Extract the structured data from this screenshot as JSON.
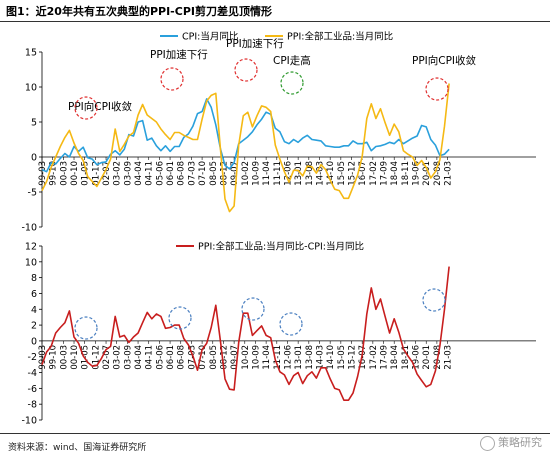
{
  "figure_title": "图1：近20年共有五次典型的PPI-CPI剪刀差见顶情形",
  "source": "资料来源：wind、国海证券研究所",
  "watermark": "策略研究",
  "colors": {
    "cpi": "#2aa0dc",
    "ppi": "#f5b914",
    "diff": "#c81e1e",
    "cpi_peak_circle": "#2f9a2f",
    "ppi_peak_circle": "#e03030",
    "diff_peak_circle": "#4a7fc0"
  },
  "annotations": [
    "PPI向CPI收敛",
    "PPI加速下行",
    "PPI加速下行",
    "CPI走高",
    "PPI向CPI收敛"
  ],
  "chart_data": [
    {
      "type": "line",
      "title": "",
      "xlabel": "",
      "ylabel": "",
      "ylim": [
        -10,
        15
      ],
      "yticks": [
        -10,
        -5,
        0,
        5,
        10,
        15
      ],
      "x_ticks": [
        "99-03",
        "99-10",
        "00-05",
        "00-12",
        "01-07",
        "02-02",
        "02-09",
        "03-04",
        "03-11",
        "04-06",
        "05-01",
        "05-08",
        "06-03",
        "06-10",
        "07-05",
        "07-12",
        "08-07",
        "09-02",
        "09-09",
        "10-04",
        "10-11",
        "11-06",
        "12-01",
        "12-08",
        "13-03",
        "13-10",
        "14-05",
        "14-12",
        "15-07",
        "16-02",
        "16-09",
        "17-04",
        "17-11",
        "18-06",
        "19-01",
        "19-08",
        "20-03",
        "20-10",
        "21-05"
      ],
      "x_display_labels": [
        "99-03",
        "99-10",
        "00-03",
        "00-10",
        "01-05",
        "01-12",
        "02-07",
        "03-02",
        "03-09",
        "04-04",
        "04-11",
        "05-06",
        "06-01",
        "06-08",
        "07-03",
        "07-10",
        "08-05",
        "08-12",
        "09-07",
        "10-02",
        "10-09",
        "11-04",
        "11-11",
        "12-06",
        "13-01",
        "13-08",
        "14-03",
        "14-10",
        "15-05",
        "15-12",
        "16-07",
        "17-02",
        "17-09",
        "18-04",
        "18-11",
        "19-06",
        "20-01",
        "20-08",
        "21-03"
      ],
      "series": [
        {
          "name": "CPI:当月同比",
          "x": [
            "1999-03",
            "1999-06",
            "1999-09",
            "1999-12",
            "2000-03",
            "2000-06",
            "2000-09",
            "2000-12",
            "2001-03",
            "2001-06",
            "2001-09",
            "2001-12",
            "2002-03",
            "2002-06",
            "2002-09",
            "2002-12",
            "2003-03",
            "2003-06",
            "2003-09",
            "2003-12",
            "2004-03",
            "2004-06",
            "2004-09",
            "2004-12",
            "2005-03",
            "2005-06",
            "2005-09",
            "2005-12",
            "2006-03",
            "2006-06",
            "2006-09",
            "2006-12",
            "2007-03",
            "2007-06",
            "2007-09",
            "2007-12",
            "2008-03",
            "2008-06",
            "2008-09",
            "2008-12",
            "2009-03",
            "2009-06",
            "2009-09",
            "2009-12",
            "2010-03",
            "2010-06",
            "2010-09",
            "2010-12",
            "2011-03",
            "2011-06",
            "2011-09",
            "2011-12",
            "2012-03",
            "2012-06",
            "2012-09",
            "2012-12",
            "2013-03",
            "2013-06",
            "2013-09",
            "2013-12",
            "2014-03",
            "2014-06",
            "2014-09",
            "2014-12",
            "2015-03",
            "2015-06",
            "2015-09",
            "2015-12",
            "2016-03",
            "2016-06",
            "2016-09",
            "2016-12",
            "2017-03",
            "2017-06",
            "2017-09",
            "2017-12",
            "2018-03",
            "2018-06",
            "2018-09",
            "2018-12",
            "2019-03",
            "2019-06",
            "2019-09",
            "2019-12",
            "2020-03",
            "2020-06",
            "2020-09",
            "2020-12",
            "2021-03",
            "2021-06"
          ],
          "values": [
            -1.8,
            -2.1,
            -0.8,
            -1.0,
            -0.2,
            0.5,
            0.0,
            1.5,
            0.8,
            1.4,
            -0.1,
            -0.3,
            -1.1,
            -0.8,
            -0.7,
            0.4,
            0.9,
            0.3,
            1.1,
            3.2,
            3.0,
            5.0,
            5.2,
            2.4,
            2.7,
            1.6,
            0.9,
            1.6,
            0.8,
            1.5,
            1.5,
            2.8,
            3.3,
            4.4,
            6.2,
            6.5,
            8.3,
            7.1,
            4.6,
            1.2,
            -1.2,
            -1.7,
            -0.8,
            1.9,
            2.4,
            2.9,
            3.6,
            4.6,
            5.4,
            6.4,
            6.1,
            4.1,
            3.6,
            2.2,
            1.9,
            2.5,
            2.1,
            2.7,
            3.1,
            2.5,
            2.4,
            2.3,
            1.6,
            1.5,
            1.4,
            1.4,
            1.6,
            1.6,
            2.3,
            1.9,
            1.9,
            2.1,
            0.9,
            1.5,
            1.6,
            1.8,
            2.1,
            1.9,
            2.5,
            1.9,
            2.3,
            2.7,
            3.0,
            4.5,
            4.3,
            2.5,
            1.7,
            0.2,
            0.4,
            1.1
          ]
        },
        {
          "name": "PPI:全部工业品:当月同比",
          "x": [
            "1999-03",
            "1999-06",
            "1999-09",
            "1999-12",
            "2000-03",
            "2000-06",
            "2000-09",
            "2000-12",
            "2001-03",
            "2001-06",
            "2001-09",
            "2001-12",
            "2002-03",
            "2002-06",
            "2002-09",
            "2002-12",
            "2003-03",
            "2003-06",
            "2003-09",
            "2003-12",
            "2004-03",
            "2004-06",
            "2004-09",
            "2004-12",
            "2005-03",
            "2005-06",
            "2005-09",
            "2005-12",
            "2006-03",
            "2006-06",
            "2006-09",
            "2006-12",
            "2007-03",
            "2007-06",
            "2007-09",
            "2007-12",
            "2008-03",
            "2008-06",
            "2008-09",
            "2008-12",
            "2009-03",
            "2009-06",
            "2009-09",
            "2009-12",
            "2010-03",
            "2010-06",
            "2010-09",
            "2010-12",
            "2011-03",
            "2011-06",
            "2011-09",
            "2011-12",
            "2012-03",
            "2012-06",
            "2012-09",
            "2012-12",
            "2013-03",
            "2013-06",
            "2013-09",
            "2013-12",
            "2014-03",
            "2014-06",
            "2014-09",
            "2014-12",
            "2015-03",
            "2015-06",
            "2015-09",
            "2015-12",
            "2016-03",
            "2016-06",
            "2016-09",
            "2016-12",
            "2017-03",
            "2017-06",
            "2017-09",
            "2017-12",
            "2018-03",
            "2018-06",
            "2018-09",
            "2018-12",
            "2019-03",
            "2019-06",
            "2019-09",
            "2019-12",
            "2020-03",
            "2020-06",
            "2020-09",
            "2020-12",
            "2021-03",
            "2021-06"
          ],
          "values": [
            -4.8,
            -3.5,
            -1.5,
            0.0,
            1.5,
            2.8,
            3.8,
            2.0,
            0.5,
            -0.5,
            -2.8,
            -3.5,
            -4.2,
            -3.0,
            -1.8,
            -0.3,
            4.0,
            0.8,
            1.8,
            3.0,
            3.5,
            6.0,
            7.5,
            6.0,
            5.5,
            5.0,
            4.0,
            3.2,
            2.5,
            3.5,
            3.5,
            3.1,
            2.8,
            2.5,
            2.5,
            5.4,
            8.0,
            8.8,
            9.1,
            1.2,
            -6.0,
            -7.8,
            -7.0,
            1.7,
            5.9,
            6.4,
            4.3,
            5.9,
            7.3,
            7.1,
            6.5,
            1.7,
            -0.3,
            -2.1,
            -3.6,
            -1.9,
            -1.9,
            -2.7,
            -1.3,
            -1.4,
            -2.3,
            -1.1,
            -1.8,
            -3.3,
            -4.6,
            -4.8,
            -5.9,
            -5.9,
            -4.3,
            -2.6,
            0.1,
            5.5,
            7.6,
            5.5,
            6.9,
            4.9,
            3.1,
            4.7,
            3.6,
            0.9,
            0.4,
            0.0,
            -1.2,
            -0.5,
            -1.5,
            -3.0,
            -2.1,
            -0.4,
            4.4,
            10.5
          ]
        }
      ]
    },
    {
      "type": "line",
      "title": "",
      "xlabel": "",
      "ylabel": "",
      "ylim": [
        -10,
        12
      ],
      "yticks": [
        -10,
        -8,
        -6,
        -4,
        -2,
        0,
        2,
        4,
        6,
        8,
        10,
        12
      ],
      "x_ticks": [
        "99-03",
        "99-10",
        "00-05",
        "00-12",
        "01-07",
        "02-02",
        "02-09",
        "03-04",
        "03-11",
        "04-06",
        "05-01",
        "05-08",
        "06-03",
        "06-10",
        "07-05",
        "07-12",
        "08-07",
        "09-02",
        "09-09",
        "10-04",
        "10-11",
        "11-06",
        "12-01",
        "12-08",
        "13-03",
        "13-10",
        "14-05",
        "14-12",
        "15-07",
        "16-02",
        "16-09",
        "17-04",
        "17-11",
        "18-06",
        "19-01",
        "19-08",
        "20-03",
        "20-10",
        "21-05"
      ],
      "x_display_labels": [
        "99-03",
        "99-10",
        "00-03",
        "00-10",
        "01-05",
        "01-12",
        "02-07",
        "03-02",
        "03-09",
        "04-04",
        "04-11",
        "05-06",
        "06-01",
        "06-08",
        "07-03",
        "07-10",
        "08-05",
        "08-12",
        "09-07",
        "10-02",
        "10-09",
        "11-04",
        "11-11",
        "12-06",
        "13-01",
        "13-08",
        "14-03",
        "14-10",
        "15-05",
        "15-12",
        "16-07",
        "17-02",
        "17-09",
        "18-04",
        "18-11",
        "19-06",
        "20-01",
        "20-08",
        "21-03"
      ],
      "series": [
        {
          "name": "PPI:全部工业品:当月同比-CPI:当月同比",
          "x": [
            "1999-03",
            "1999-06",
            "1999-09",
            "1999-12",
            "2000-03",
            "2000-06",
            "2000-09",
            "2000-12",
            "2001-03",
            "2001-06",
            "2001-09",
            "2001-12",
            "2002-03",
            "2002-06",
            "2002-09",
            "2002-12",
            "2003-03",
            "2003-06",
            "2003-09",
            "2003-12",
            "2004-03",
            "2004-06",
            "2004-09",
            "2004-12",
            "2005-03",
            "2005-06",
            "2005-09",
            "2005-12",
            "2006-03",
            "2006-06",
            "2006-09",
            "2006-12",
            "2007-03",
            "2007-06",
            "2007-09",
            "2007-12",
            "2008-03",
            "2008-06",
            "2008-09",
            "2008-12",
            "2009-03",
            "2009-06",
            "2009-09",
            "2009-12",
            "2010-03",
            "2010-06",
            "2010-09",
            "2010-12",
            "2011-03",
            "2011-06",
            "2011-09",
            "2011-12",
            "2012-03",
            "2012-06",
            "2012-09",
            "2012-12",
            "2013-03",
            "2013-06",
            "2013-09",
            "2013-12",
            "2014-03",
            "2014-06",
            "2014-09",
            "2014-12",
            "2015-03",
            "2015-06",
            "2015-09",
            "2015-12",
            "2016-03",
            "2016-06",
            "2016-09",
            "2016-12",
            "2017-03",
            "2017-06",
            "2017-09",
            "2017-12",
            "2018-03",
            "2018-06",
            "2018-09",
            "2018-12",
            "2019-03",
            "2019-06",
            "2019-09",
            "2019-12",
            "2020-03",
            "2020-06",
            "2020-09",
            "2020-12",
            "2021-03",
            "2021-06"
          ],
          "values": [
            -3.0,
            -1.4,
            -0.7,
            1.0,
            1.7,
            2.3,
            3.8,
            0.5,
            -0.3,
            -1.9,
            -2.7,
            -3.2,
            -3.1,
            -2.2,
            -1.1,
            -0.7,
            3.1,
            0.5,
            0.7,
            -0.2,
            0.5,
            1.0,
            2.3,
            3.6,
            2.8,
            3.4,
            3.1,
            1.6,
            1.7,
            2.0,
            2.0,
            0.3,
            -0.5,
            -1.9,
            -3.7,
            -1.1,
            -0.3,
            1.7,
            4.5,
            0.0,
            -4.8,
            -6.1,
            -6.2,
            -0.2,
            3.5,
            3.5,
            0.7,
            1.3,
            1.9,
            0.7,
            0.4,
            -2.4,
            -3.9,
            -4.3,
            -5.5,
            -4.4,
            -4.0,
            -5.4,
            -4.4,
            -3.9,
            -4.7,
            -3.4,
            -3.4,
            -4.8,
            -6.0,
            -6.2,
            -7.5,
            -7.5,
            -6.6,
            -4.5,
            -1.8,
            3.4,
            6.7,
            4.0,
            5.3,
            3.1,
            1.0,
            2.8,
            1.1,
            -1.0,
            -1.9,
            -2.7,
            -4.2,
            -5.0,
            -5.8,
            -5.5,
            -3.8,
            -0.6,
            4.0,
            9.4
          ]
        }
      ]
    }
  ]
}
